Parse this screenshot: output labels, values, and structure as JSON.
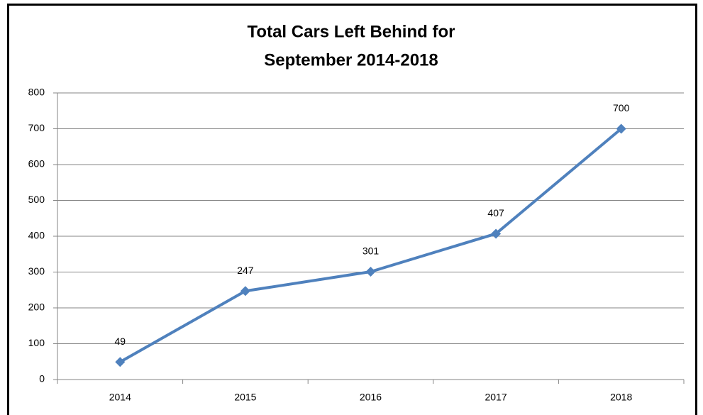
{
  "chart_data": {
    "type": "line",
    "title": [
      "Total Cars Left Behind for",
      "September 2014-2018"
    ],
    "categories": [
      "2014",
      "2015",
      "2016",
      "2017",
      "2018"
    ],
    "values": [
      49,
      247,
      301,
      407,
      700
    ],
    "color": "#4f81bd",
    "ylim": [
      0,
      800
    ],
    "yticks": [
      0,
      100,
      200,
      300,
      400,
      500,
      600,
      700,
      800
    ],
    "grid": true,
    "data_labels": true,
    "marker": "diamond"
  }
}
